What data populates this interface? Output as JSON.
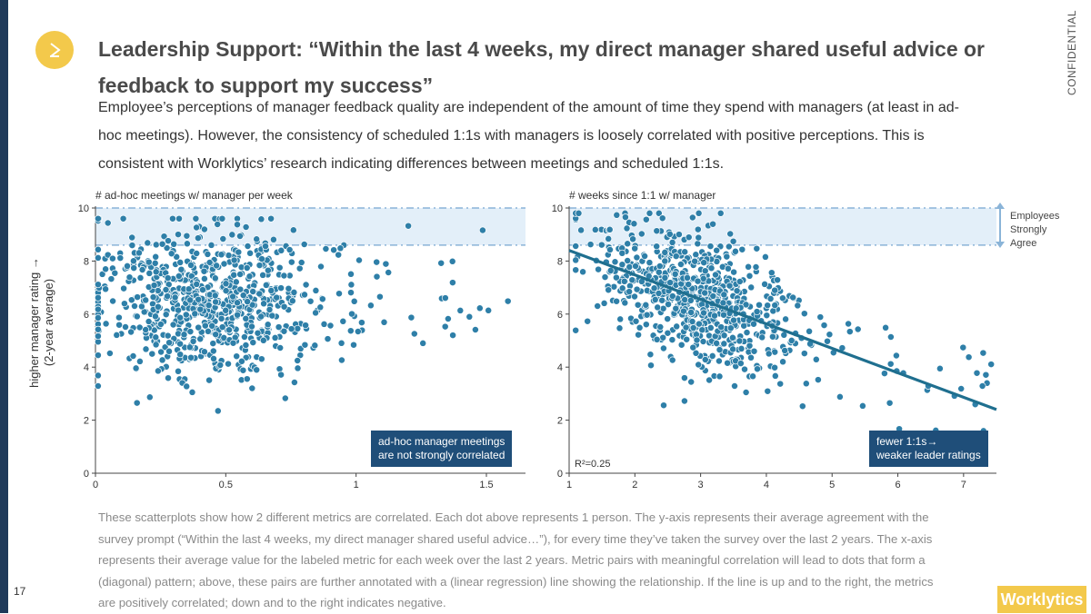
{
  "title": "Leadership Support: “Within the last 4 weeks, my direct manager shared useful advice or feedback to support my success”",
  "subtitle": "Employee’s perceptions of manager feedback quality are independent of the amount of time they spend with managers (at least in ad-hoc meetings). However, the consistency of scheduled 1:1s with managers is loosely correlated with positive perceptions. This is consistent with Worklytics’ research indicating differences between meetings and scheduled 1:1s.",
  "confidential": "CONFIDENTIAL",
  "page_number": "17",
  "brand": "Worklytics",
  "ylabel_line1": "higher manager rating →",
  "ylabel_line2": "(2-year average)",
  "legend_note": {
    "line1": "Employees",
    "line2": "Strongly",
    "line3": "Agree"
  },
  "colors": {
    "dot": "#2e7fa8",
    "dot_stroke": "#ffffff",
    "band": "#e3eff9",
    "band_line": "#8ab4d8",
    "regression": "#1f6f8f",
    "callout_bg": "#1f4e79",
    "brand": "#f3c94b",
    "left_bar": "#1f3a5a"
  },
  "icons": {
    "logo": "play-triangle-icon",
    "legend_arrow": "double-arrow-vertical-icon"
  },
  "chart_data": [
    {
      "type": "scatter",
      "xlabel": "# ad-hoc meetings w/ manager per week",
      "ylabel": "higher manager rating → (2-year average)",
      "xlim": [
        0,
        1.65
      ],
      "ylim": [
        0,
        10
      ],
      "xticks": [
        "0",
        "0.5",
        "1",
        "1.5"
      ],
      "yticks": [
        "0",
        "2",
        "4",
        "6",
        "8",
        "10"
      ],
      "band_y": [
        8.6,
        10
      ],
      "callout": {
        "line1": "ad-hoc manager meetings",
        "line2": "are not strongly correlated"
      },
      "points_note": "~800 individuals; x mostly 0.05–1.0, y mostly 3–9",
      "regression": null
    },
    {
      "type": "scatter",
      "xlabel": "# weeks since 1:1 w/ manager",
      "ylabel": "higher manager rating → (2-year average)",
      "xlim": [
        1,
        7.5
      ],
      "ylim": [
        0,
        10
      ],
      "xticks": [
        "1",
        "2",
        "3",
        "4",
        "5",
        "6",
        "7"
      ],
      "yticks": [
        "0",
        "2",
        "4",
        "6",
        "8",
        "10"
      ],
      "band_y": [
        8.6,
        10
      ],
      "r2_label": "R²=0.25",
      "regression": {
        "x": [
          1,
          7.5
        ],
        "y": [
          8.4,
          2.4
        ]
      },
      "callout": {
        "line1": "fewer 1:1s→",
        "line2": "weaker leader ratings"
      }
    }
  ],
  "footnote": "These scatterplots show how 2 different metrics are correlated. Each dot above represents 1 person. The y-axis represents their average agreement with the survey prompt (“Within the last 4 weeks, my direct manager shared useful advice…”), for every time they’ve taken the survey over the last 2 years. The x-axis represents their average value for the labeled metric for each week over the last 2 years. Metric pairs with meaningful correlation will lead to dots that form a (diagonal) pattern; above, these pairs are further annotated with a (linear regression) line showing the relationship. If the line is up and to the right, the metrics are positively correlated; down and to the right indicates negative."
}
